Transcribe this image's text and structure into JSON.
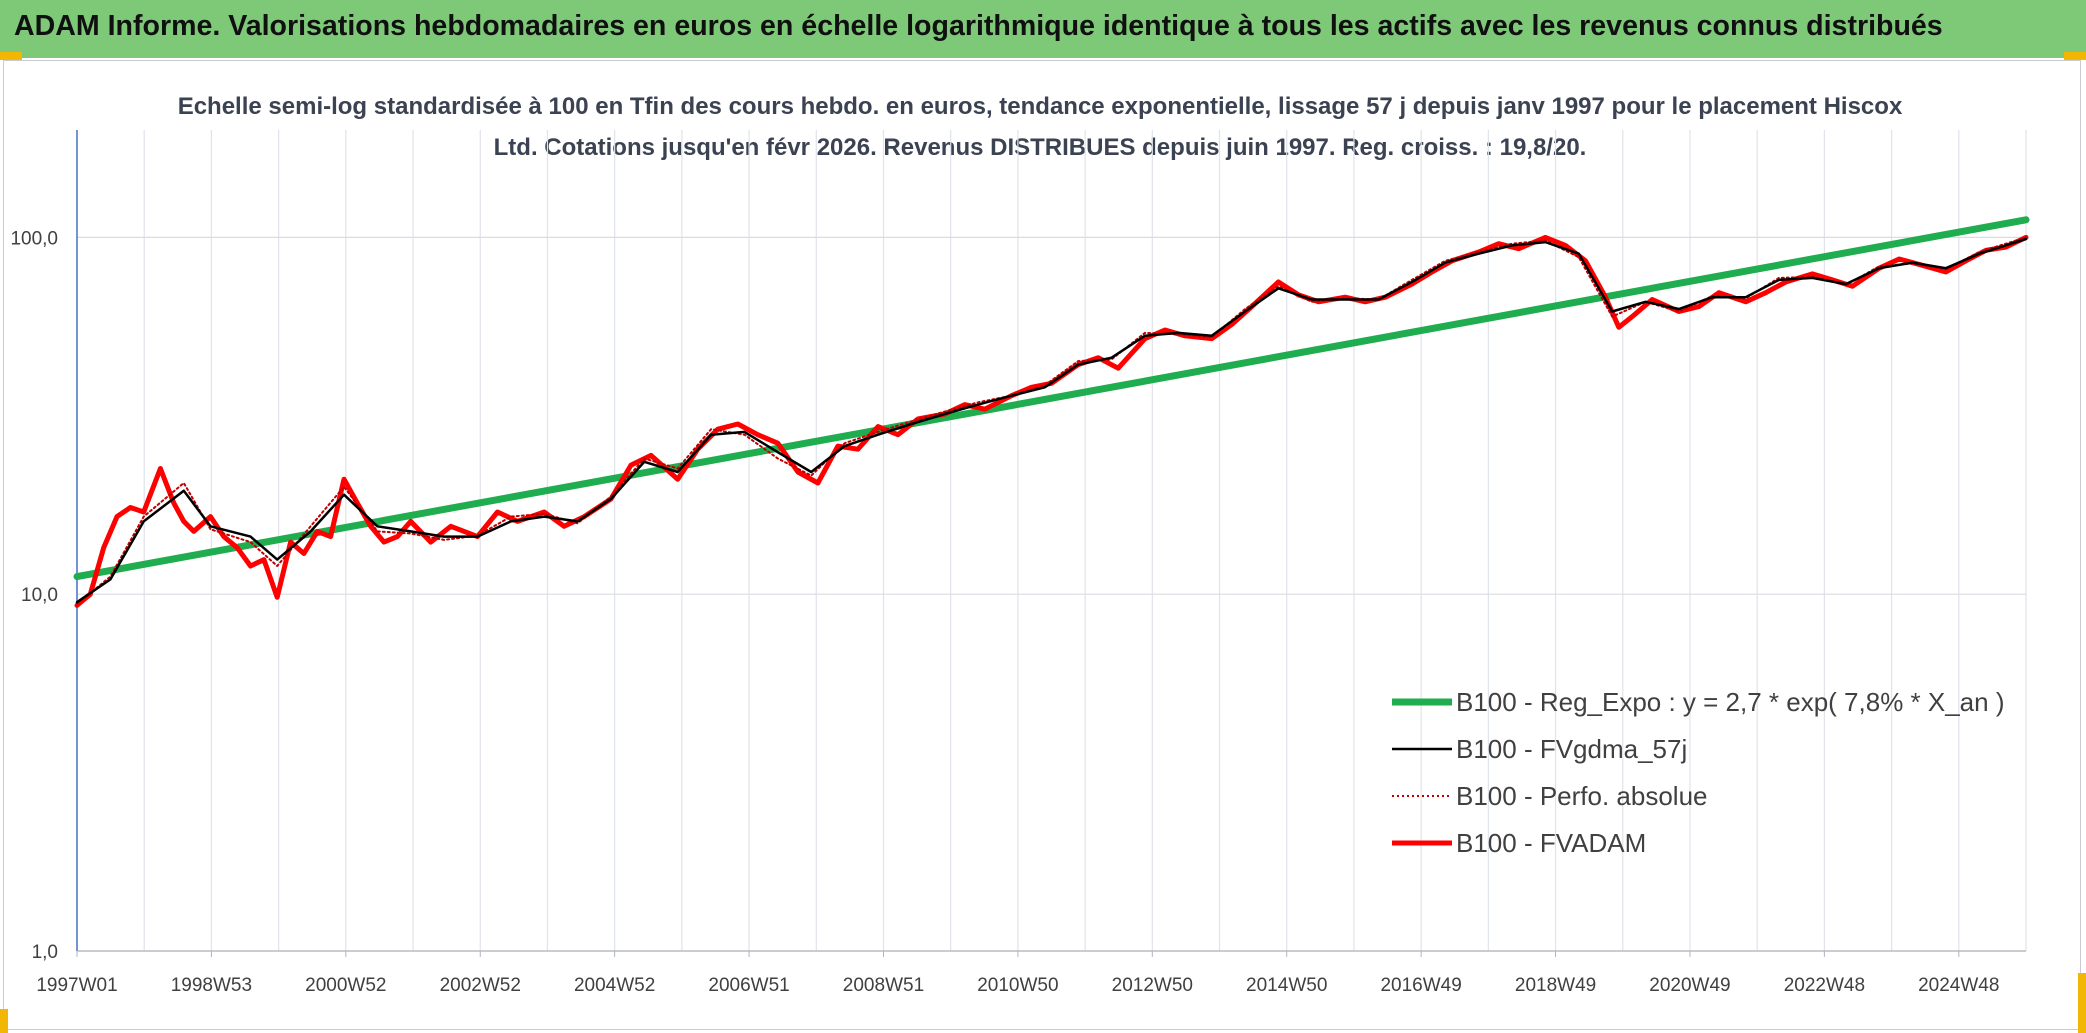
{
  "header": {
    "title": "ADAM Informe. Valorisations hebdomadaires en euros en échelle logarithmique identique à tous les actifs avec les revenus connus distribués"
  },
  "chart_data": {
    "type": "line",
    "title": "Echelle semi-log standardisée à 100 en Tfin des cours hebdo. en euros, tendance exponentielle, lissage 57 j depuis janv 1997 pour le placement Hiscox Ltd. Cotations jusqu'en févr 2026. Revenus DISTRIBUES depuis juin 1997. Reg. croiss. : 19,8/20.",
    "y_scale": "log",
    "ylim": [
      1,
      200
    ],
    "y_ticks": [
      "1,0",
      "10,0",
      "100,0"
    ],
    "x_ticks": [
      "1997W01",
      "1998W53",
      "2000W52",
      "2002W52",
      "2004W52",
      "2006W51",
      "2008W51",
      "2010W50",
      "2012W50",
      "2014W50",
      "2016W49",
      "2018W49",
      "2020W49",
      "2022W48",
      "2024W48"
    ],
    "x_range_years": [
      1997.0,
      2026.2
    ],
    "grid": true,
    "legend_position": "bottom-right",
    "series": [
      {
        "name": "B100 - Reg_Expo : y = 2,7 * exp( 7,8% *  X_an )",
        "color": "#1fad4f",
        "style": "thick",
        "x": [
          1997.0,
          2026.2
        ],
        "values": [
          11.2,
          112.0
        ]
      },
      {
        "name": "B100 - FVgdma_57j",
        "color": "#000000",
        "style": "solid",
        "x": [
          1997.0,
          1997.5,
          1998.0,
          1998.6,
          1999.0,
          1999.6,
          2000.0,
          2000.5,
          2001.0,
          2001.5,
          2002.0,
          2002.5,
          2003.0,
          2003.5,
          2004.0,
          2004.5,
          2005.0,
          2005.5,
          2006.0,
          2006.5,
          2007.0,
          2007.5,
          2008.0,
          2008.5,
          2009.0,
          2009.5,
          2010.0,
          2010.5,
          2011.0,
          2011.5,
          2012.0,
          2012.5,
          2013.0,
          2013.5,
          2014.0,
          2014.5,
          2015.0,
          2015.5,
          2016.0,
          2016.5,
          2017.0,
          2017.5,
          2018.0,
          2018.5,
          2019.0,
          2019.5,
          2020.0,
          2020.5,
          2021.0,
          2021.5,
          2022.0,
          2022.5,
          2023.0,
          2023.5,
          2024.0,
          2024.5,
          2025.0,
          2025.5,
          2026.2
        ],
        "values": [
          9.5,
          11.0,
          16.0,
          19.5,
          15.5,
          14.5,
          12.5,
          15.0,
          19.0,
          15.5,
          15.0,
          14.5,
          14.5,
          16.0,
          16.5,
          16.0,
          18.5,
          23.5,
          22.0,
          28.0,
          28.5,
          25.0,
          22.0,
          26.0,
          28.0,
          30.0,
          32.0,
          34.0,
          36.0,
          38.0,
          44.0,
          46.0,
          53.0,
          54.0,
          53.0,
          62.0,
          72.0,
          67.0,
          67.0,
          67.0,
          75.0,
          85.0,
          90.0,
          95.0,
          97.0,
          90.0,
          62.0,
          66.0,
          63.0,
          68.0,
          68.0,
          76.0,
          77.0,
          74.0,
          82.0,
          85.0,
          82.0,
          90.0,
          99.0
        ]
      },
      {
        "name": "B100 - Perfo. absolue",
        "color": "#c00000",
        "style": "dotted",
        "x": [
          1997.0,
          1997.5,
          1998.0,
          1998.6,
          1999.0,
          1999.6,
          2000.0,
          2000.5,
          2001.0,
          2001.5,
          2002.0,
          2002.5,
          2003.0,
          2003.5,
          2004.0,
          2004.5,
          2005.0,
          2005.5,
          2006.0,
          2006.5,
          2007.0,
          2007.5,
          2008.0,
          2008.5,
          2009.0,
          2009.5,
          2010.0,
          2010.5,
          2011.0,
          2011.5,
          2012.0,
          2012.5,
          2013.0,
          2013.5,
          2014.0,
          2014.5,
          2015.0,
          2015.5,
          2016.0,
          2016.5,
          2017.0,
          2017.5,
          2018.0,
          2018.5,
          2019.0,
          2019.5,
          2020.0,
          2020.5,
          2021.0,
          2021.5,
          2022.0,
          2022.5,
          2023.0,
          2023.5,
          2024.0,
          2024.5,
          2025.0,
          2025.5,
          2026.2
        ],
        "values": [
          9.4,
          11.2,
          16.5,
          20.5,
          15.2,
          14.0,
          12.0,
          15.5,
          20.0,
          15.0,
          14.8,
          14.2,
          14.6,
          16.5,
          16.8,
          15.8,
          18.8,
          24.0,
          22.5,
          29.0,
          28.0,
          24.0,
          21.5,
          26.5,
          28.5,
          30.5,
          32.5,
          34.5,
          36.0,
          38.5,
          45.0,
          45.5,
          54.0,
          53.5,
          52.5,
          63.0,
          73.0,
          66.0,
          67.5,
          67.0,
          76.0,
          86.0,
          91.0,
          96.0,
          98.0,
          88.0,
          60.0,
          66.0,
          62.0,
          68.5,
          67.5,
          77.0,
          77.5,
          73.5,
          83.0,
          84.5,
          81.5,
          91.0,
          100.0
        ]
      },
      {
        "name": "B100 - FVADAM",
        "color": "#ff0000",
        "style": "thick",
        "x": [
          1997.0,
          1997.2,
          1997.4,
          1997.6,
          1997.8,
          1998.0,
          1998.25,
          1998.45,
          1998.6,
          1998.75,
          1999.0,
          1999.2,
          1999.4,
          1999.6,
          1999.8,
          2000.0,
          2000.2,
          2000.4,
          2000.6,
          2000.8,
          2001.0,
          2001.2,
          2001.4,
          2001.6,
          2001.8,
          2002.0,
          2002.3,
          2002.6,
          2003.0,
          2003.3,
          2003.6,
          2004.0,
          2004.3,
          2004.6,
          2005.0,
          2005.3,
          2005.6,
          2006.0,
          2006.3,
          2006.6,
          2006.9,
          2007.2,
          2007.5,
          2007.8,
          2008.1,
          2008.4,
          2008.7,
          2009.0,
          2009.3,
          2009.6,
          2010.0,
          2010.3,
          2010.6,
          2011.0,
          2011.3,
          2011.6,
          2012.0,
          2012.3,
          2012.6,
          2013.0,
          2013.3,
          2013.6,
          2014.0,
          2014.3,
          2014.6,
          2015.0,
          2015.3,
          2015.6,
          2016.0,
          2016.3,
          2016.6,
          2017.0,
          2017.3,
          2017.6,
          2018.0,
          2018.3,
          2018.6,
          2019.0,
          2019.3,
          2019.6,
          2019.9,
          2020.1,
          2020.3,
          2020.6,
          2021.0,
          2021.3,
          2021.6,
          2022.0,
          2022.3,
          2022.6,
          2023.0,
          2023.3,
          2023.6,
          2024.0,
          2024.3,
          2024.6,
          2025.0,
          2025.3,
          2025.6,
          2025.9,
          2026.2
        ],
        "values": [
          9.3,
          10.0,
          13.5,
          16.5,
          17.5,
          17.0,
          22.5,
          18.0,
          16.0,
          15.0,
          16.5,
          14.5,
          13.5,
          12.0,
          12.5,
          9.8,
          14.0,
          13.0,
          15.0,
          14.5,
          21.0,
          18.0,
          15.5,
          14.0,
          14.5,
          16.0,
          14.0,
          15.5,
          14.5,
          17.0,
          16.0,
          17.0,
          15.5,
          16.5,
          18.5,
          23.0,
          24.5,
          21.0,
          25.5,
          29.0,
          30.0,
          28.0,
          26.5,
          22.0,
          20.5,
          26.0,
          25.5,
          29.5,
          28.0,
          31.0,
          32.0,
          34.0,
          33.0,
          36.0,
          38.0,
          39.0,
          44.0,
          46.0,
          43.0,
          52.0,
          55.0,
          53.0,
          52.0,
          57.0,
          64.0,
          75.0,
          69.0,
          66.0,
          68.0,
          66.0,
          68.0,
          74.0,
          80.0,
          86.0,
          91.0,
          96.0,
          93.0,
          100.0,
          95.0,
          86.0,
          68.0,
          56.0,
          60.0,
          67.0,
          62.0,
          64.0,
          70.0,
          66.0,
          70.0,
          75.0,
          79.0,
          76.0,
          73.0,
          82.0,
          87.0,
          84.0,
          80.0,
          86.0,
          92.0,
          94.0,
          100.0
        ]
      }
    ]
  }
}
